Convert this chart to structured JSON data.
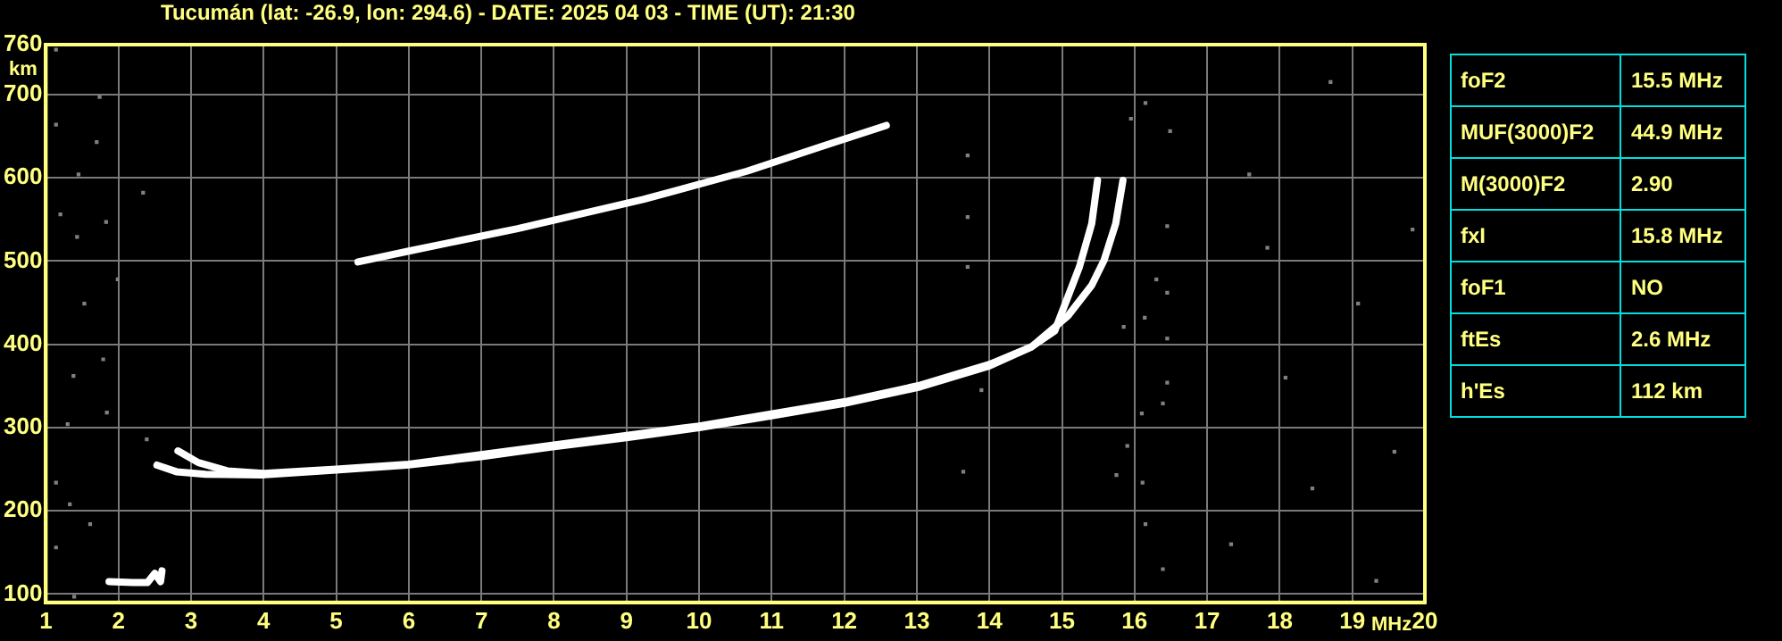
{
  "chart_data": [
    {
      "type": "line",
      "title": "Tucumán (lat: -26.9, lon: 294.6) - DATE: 2025 04 03 - TIME (UT): 21:30",
      "xlabel": "MHz",
      "ylabel": "km",
      "xlim": [
        1,
        20
      ],
      "xticks": [
        1,
        2,
        3,
        4,
        5,
        6,
        7,
        8,
        9,
        10,
        11,
        12,
        13,
        14,
        15,
        16,
        17,
        18,
        19,
        20
      ],
      "ylim": [
        90,
        760
      ],
      "yticks": [
        100,
        200,
        300,
        400,
        500,
        600,
        700,
        760
      ],
      "grid": true,
      "legend": false,
      "series": [
        {
          "type": "line",
          "color": "#ffffff",
          "x": [
            2.53,
            2.8,
            3.2,
            3.97,
            5.0,
            5.97,
            7.0,
            7.98,
            9.0,
            10.0,
            11.0,
            12.0,
            13.05,
            14.0,
            14.58,
            14.9,
            15.24,
            15.41,
            15.49
          ],
          "values": [
            255,
            247,
            244,
            243,
            249,
            255,
            265,
            277,
            288,
            300,
            314,
            329,
            349,
            374,
            397,
            416,
            493,
            545,
            597
          ]
        },
        {
          "type": "line",
          "color": "#ffffff",
          "x": [
            2.82,
            3.1,
            3.5,
            4.0,
            5.0,
            6.0,
            8.0,
            10.0,
            12.0,
            13.05,
            14.0,
            14.58,
            15.08,
            15.41,
            15.58,
            15.74,
            15.84
          ],
          "values": [
            272,
            258,
            248,
            245,
            250,
            256,
            279,
            302,
            331,
            351,
            376,
            397,
            434,
            471,
            501,
            545,
            597
          ]
        },
        {
          "type": "line",
          "color": "#ffffff",
          "x": [
            5.3,
            6.0,
            7.5,
            9.23,
            10.66,
            11.7,
            12.58
          ],
          "values": [
            499,
            512,
            539,
            574,
            608,
            638,
            663
          ]
        },
        {
          "type": "line",
          "color": "#ffffff",
          "x": [
            1.87,
            2.2,
            2.4,
            2.5,
            2.58,
            2.6
          ],
          "values": [
            115,
            114,
            114,
            125,
            115,
            128
          ]
        },
        {
          "type": "scatter",
          "color": "#808080",
          "marker": "square",
          "x": [
            1.14,
            1.74,
            1.14,
            1.7,
            1.45,
            2.34,
            1.2,
            1.83,
            1.43,
            1.53,
            1.99,
            1.38,
            1.79,
            1.84,
            1.3,
            1.14,
            1.33,
            1.14,
            1.61,
            1.39,
            2.39,
            15.95,
            16.49,
            16.15,
            16.45,
            16.3,
            16.45,
            16.14,
            15.85,
            16.45,
            16.45,
            16.1,
            16.39,
            15.9,
            15.75,
            16.11,
            16.15,
            16.39,
            13.7,
            13.7,
            13.7,
            13.89,
            13.64,
            17.58,
            18.7,
            19.08,
            18.08,
            19.58,
            17.33,
            18.45,
            19.33,
            17.83,
            19.83
          ],
          "values": [
            754,
            697,
            664,
            643,
            604,
            582,
            556,
            547,
            529,
            449,
            478,
            362,
            382,
            318,
            304,
            234,
            208,
            156,
            184,
            97,
            286,
            671,
            656,
            690,
            542,
            478,
            462,
            432,
            421,
            407,
            354,
            317,
            329,
            278,
            243,
            234,
            184,
            130,
            627,
            553,
            493,
            345,
            247,
            604,
            715,
            449,
            360,
            271,
            160,
            227,
            116,
            516,
            538
          ]
        }
      ]
    },
    {
      "type": "other",
      "annotations": [
        "foF2",
        "15.5 MHz",
        "MUF(3000)F2",
        "44.9 MHz",
        "M(3000)F2",
        "2.90",
        "fxI",
        "15.8 MHz",
        "foF1",
        "NO",
        "ftEs",
        "2.6 MHz",
        "h'Es",
        "112 km"
      ]
    }
  ]
}
